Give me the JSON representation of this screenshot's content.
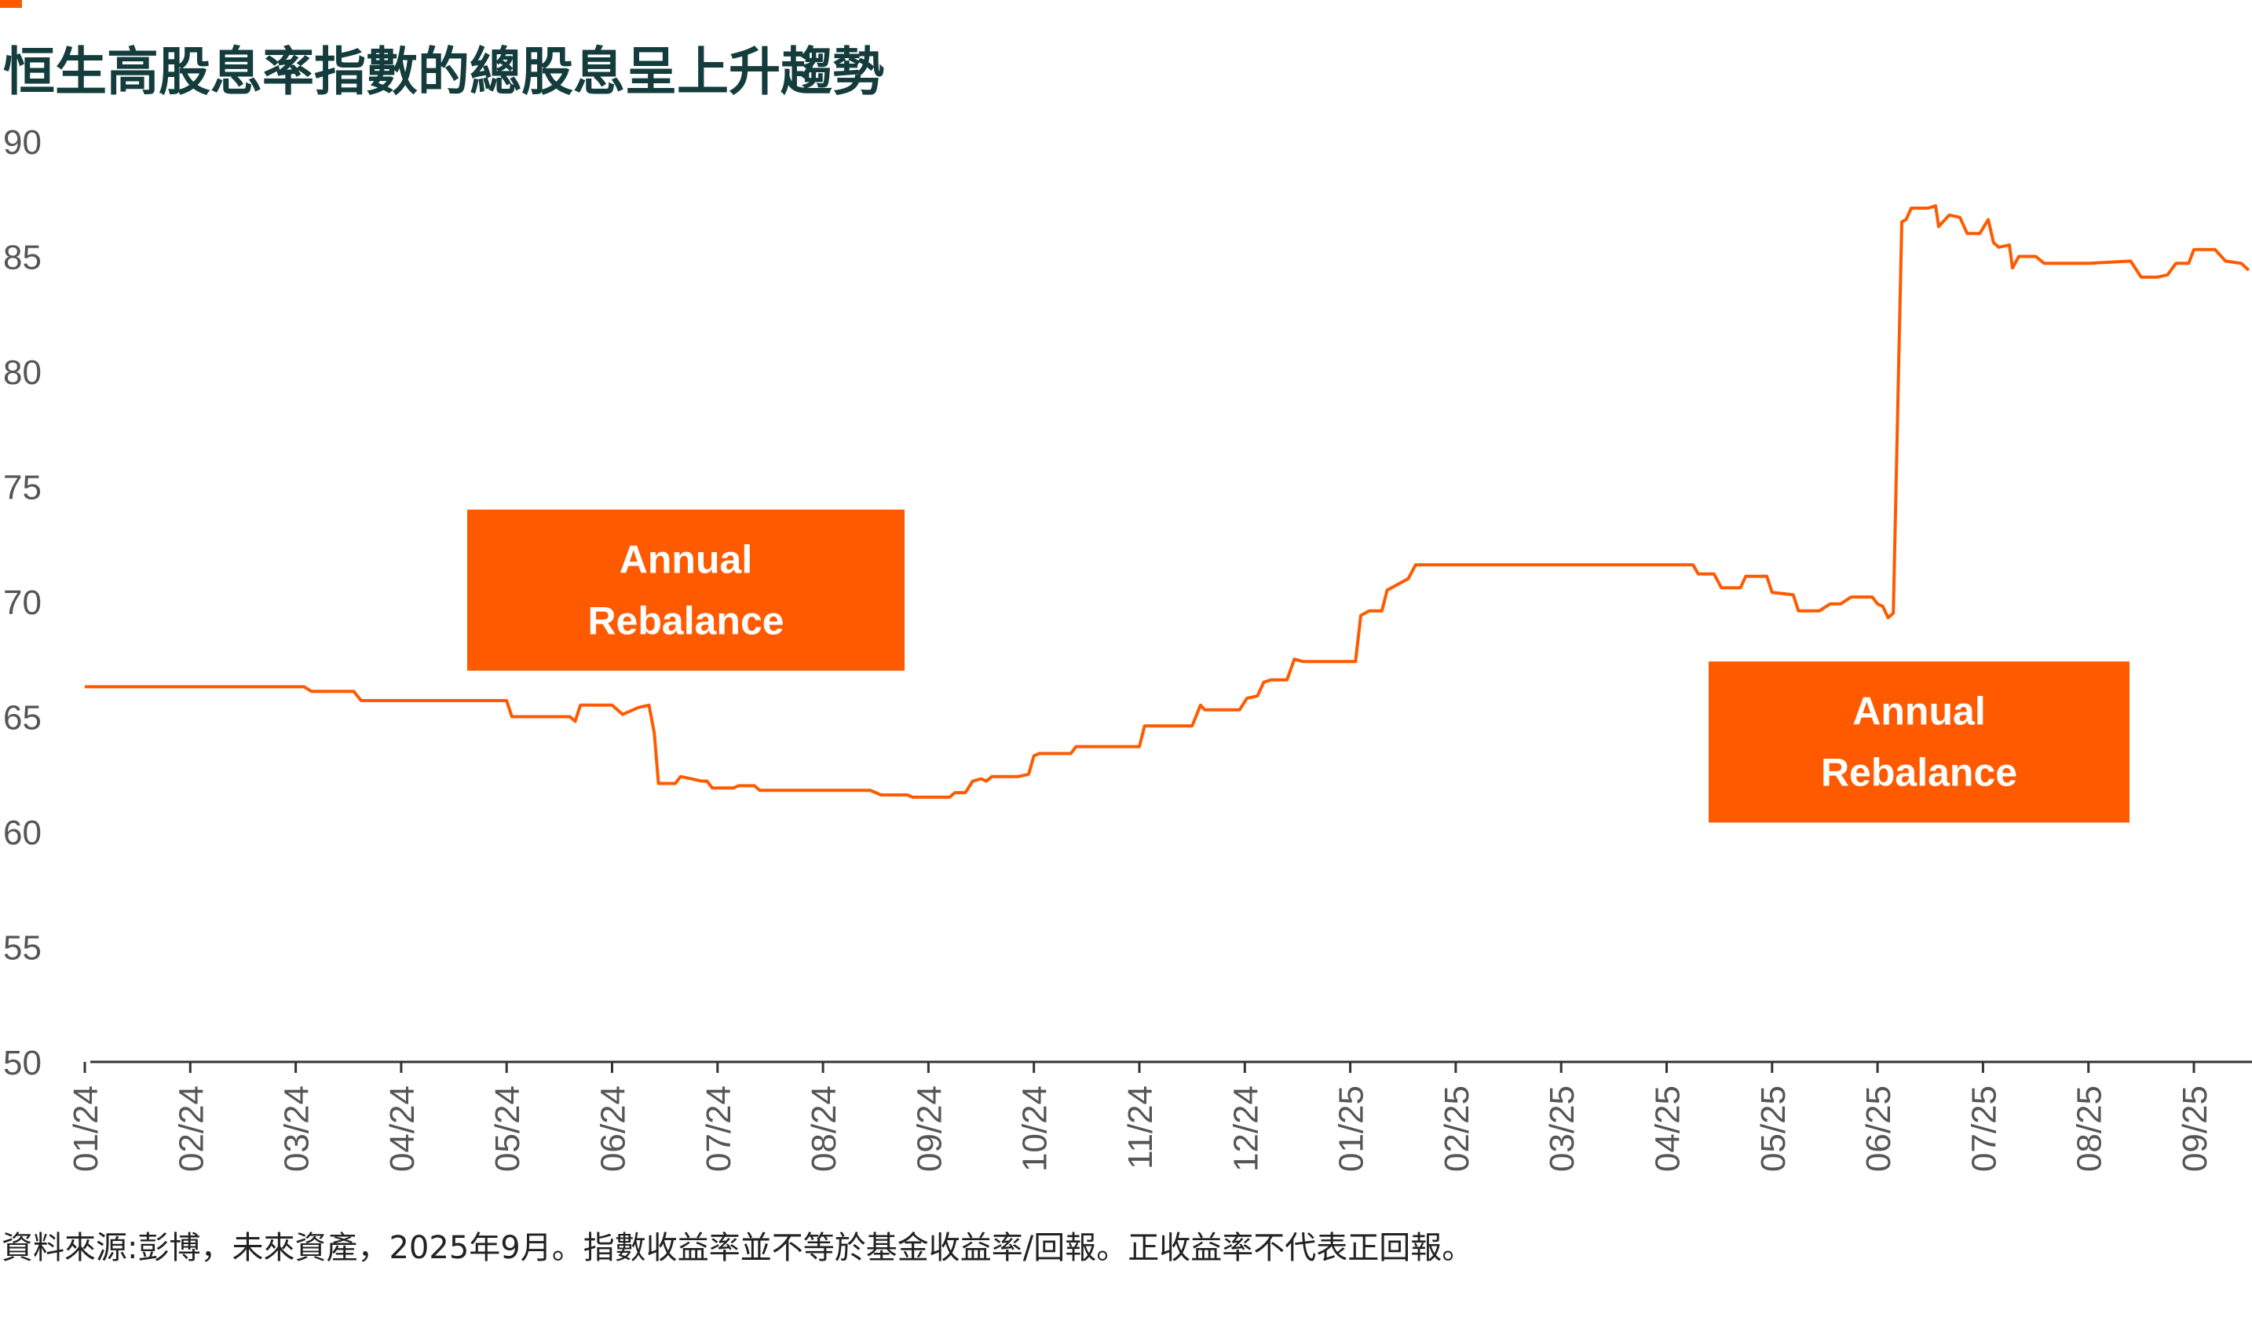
{
  "title": "恒生高股息率指數的總股息呈上升趨勢",
  "source": "資料來源:彭博，未來資產，2025年9月。指數收益率並不等於基金收益率/回報。正收益率不代表正回報。",
  "colors": {
    "accent": "#ff5a00",
    "title": "#143c3c",
    "axis": "#333333",
    "tick_text": "#555555"
  },
  "chart_data": {
    "type": "line",
    "title": "恒生高股息率指數的總股息呈上升趨勢",
    "xlabel": "",
    "ylabel": "",
    "ylim": [
      50,
      90
    ],
    "yticks": [
      90,
      85,
      80,
      75,
      70,
      65,
      60,
      55,
      50
    ],
    "xlim": [
      0,
      20.7
    ],
    "xticks": [
      "01/24",
      "02/24",
      "03/24",
      "04/24",
      "05/24",
      "06/24",
      "07/24",
      "08/24",
      "09/24",
      "10/24",
      "11/24",
      "12/24",
      "01/25",
      "02/25",
      "03/25",
      "04/25",
      "05/25",
      "06/25",
      "07/25",
      "08/25",
      "09/25"
    ],
    "grid": false,
    "legend": "none",
    "annotations": [
      {
        "text_line1": "Annual",
        "text_line2": "Rebalance",
        "near_x": "05/24",
        "y_top": 74,
        "y_bottom": 67
      },
      {
        "text_line1": "Annual",
        "text_line2": "Rebalance",
        "near_x": "05/25",
        "y_top": 67.4,
        "y_bottom": 60.4
      }
    ],
    "series": [
      {
        "name": "",
        "color": "#ff5a00",
        "points": [
          [
            0.0,
            66.3
          ],
          [
            2.08,
            66.3
          ],
          [
            2.15,
            66.1
          ],
          [
            2.55,
            66.1
          ],
          [
            2.62,
            65.7
          ],
          [
            3.3,
            65.7
          ],
          [
            4.0,
            65.7
          ],
          [
            4.05,
            65.0
          ],
          [
            4.6,
            65.0
          ],
          [
            4.65,
            64.8
          ],
          [
            4.7,
            65.5
          ],
          [
            5.0,
            65.5
          ],
          [
            5.1,
            65.1
          ],
          [
            5.25,
            65.4
          ],
          [
            5.35,
            65.5
          ],
          [
            5.4,
            64.3
          ],
          [
            5.44,
            62.1
          ],
          [
            5.6,
            62.1
          ],
          [
            5.65,
            62.4
          ],
          [
            5.75,
            62.3
          ],
          [
            5.85,
            62.2
          ],
          [
            5.9,
            62.2
          ],
          [
            5.95,
            61.9
          ],
          [
            6.15,
            61.9
          ],
          [
            6.2,
            62.0
          ],
          [
            6.35,
            62.0
          ],
          [
            6.4,
            61.8
          ],
          [
            6.9,
            61.8
          ],
          [
            7.3,
            61.8
          ],
          [
            7.45,
            61.8
          ],
          [
            7.55,
            61.6
          ],
          [
            7.8,
            61.6
          ],
          [
            7.85,
            61.5
          ],
          [
            8.2,
            61.5
          ],
          [
            8.25,
            61.7
          ],
          [
            8.35,
            61.7
          ],
          [
            8.42,
            62.2
          ],
          [
            8.5,
            62.3
          ],
          [
            8.55,
            62.2
          ],
          [
            8.6,
            62.4
          ],
          [
            8.85,
            62.4
          ],
          [
            8.95,
            62.5
          ],
          [
            9.0,
            63.3
          ],
          [
            9.05,
            63.4
          ],
          [
            9.35,
            63.4
          ],
          [
            9.4,
            63.7
          ],
          [
            10.0,
            63.7
          ],
          [
            10.05,
            64.6
          ],
          [
            10.5,
            64.6
          ],
          [
            10.58,
            65.5
          ],
          [
            10.62,
            65.3
          ],
          [
            10.95,
            65.3
          ],
          [
            11.02,
            65.8
          ],
          [
            11.12,
            65.9
          ],
          [
            11.18,
            66.5
          ],
          [
            11.25,
            66.6
          ],
          [
            11.4,
            66.6
          ],
          [
            11.47,
            67.5
          ],
          [
            11.55,
            67.4
          ],
          [
            12.05,
            67.4
          ],
          [
            12.1,
            69.4
          ],
          [
            12.18,
            69.6
          ],
          [
            12.3,
            69.6
          ],
          [
            12.35,
            70.5
          ],
          [
            12.55,
            71.0
          ],
          [
            12.62,
            71.6
          ],
          [
            12.75,
            71.6
          ],
          [
            14.0,
            71.6
          ],
          [
            15.25,
            71.6
          ],
          [
            15.3,
            71.2
          ],
          [
            15.45,
            71.2
          ],
          [
            15.52,
            70.6
          ],
          [
            15.7,
            70.6
          ],
          [
            15.75,
            71.1
          ],
          [
            15.95,
            71.1
          ],
          [
            16.0,
            70.4
          ],
          [
            16.2,
            70.3
          ],
          [
            16.25,
            69.6
          ],
          [
            16.45,
            69.6
          ],
          [
            16.55,
            69.9
          ],
          [
            16.65,
            69.9
          ],
          [
            16.75,
            70.2
          ],
          [
            16.95,
            70.2
          ],
          [
            17.0,
            69.9
          ],
          [
            17.05,
            69.8
          ],
          [
            17.1,
            69.3
          ],
          [
            17.15,
            69.5
          ],
          [
            17.23,
            86.5
          ],
          [
            17.27,
            86.6
          ],
          [
            17.32,
            87.1
          ],
          [
            17.48,
            87.1
          ],
          [
            17.55,
            87.2
          ],
          [
            17.58,
            86.3
          ],
          [
            17.68,
            86.8
          ],
          [
            17.78,
            86.7
          ],
          [
            17.85,
            86.0
          ],
          [
            17.97,
            86.0
          ],
          [
            18.05,
            86.6
          ],
          [
            18.1,
            85.6
          ],
          [
            18.15,
            85.4
          ],
          [
            18.25,
            85.5
          ],
          [
            18.28,
            84.5
          ],
          [
            18.34,
            85.0
          ],
          [
            18.5,
            85.0
          ],
          [
            18.58,
            84.7
          ],
          [
            19.0,
            84.7
          ],
          [
            19.4,
            84.8
          ],
          [
            19.5,
            84.1
          ],
          [
            19.65,
            84.1
          ],
          [
            19.75,
            84.2
          ],
          [
            19.83,
            84.7
          ],
          [
            19.95,
            84.7
          ],
          [
            20.0,
            85.3
          ],
          [
            20.2,
            85.3
          ],
          [
            20.3,
            84.8
          ],
          [
            20.45,
            84.7
          ],
          [
            20.52,
            84.4
          ]
        ]
      }
    ]
  }
}
